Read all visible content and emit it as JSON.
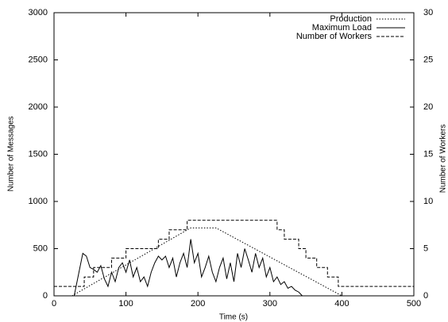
{
  "chart_data": {
    "type": "line",
    "xlabel": "Time (s)",
    "ylabel": "Number of Messages",
    "y2label": "Number of Workers",
    "xlim": [
      0,
      500
    ],
    "xticks": [
      0,
      100,
      200,
      300,
      400,
      500
    ],
    "ylim": [
      0,
      3000
    ],
    "yticks": [
      0,
      500,
      1000,
      1500,
      2000,
      2500,
      3000
    ],
    "y2lim": [
      0,
      30
    ],
    "y2ticks": [
      0,
      5,
      10,
      15,
      20,
      25,
      30
    ],
    "legend": "top-right",
    "series": [
      {
        "name": "Production",
        "color": "#000000",
        "dash": "dotted",
        "x": [
          25,
          190,
          225,
          400
        ],
        "values": [
          0,
          720,
          720,
          0
        ]
      },
      {
        "name": "Maximum Load",
        "color": "#000000",
        "dash": "solid",
        "x": [
          28,
          40,
          45,
          50,
          55,
          60,
          65,
          70,
          75,
          80,
          85,
          90,
          95,
          100,
          105,
          110,
          115,
          120,
          125,
          130,
          135,
          140,
          145,
          150,
          155,
          160,
          165,
          170,
          175,
          180,
          185,
          190,
          195,
          200,
          205,
          210,
          215,
          220,
          225,
          230,
          235,
          240,
          245,
          250,
          255,
          260,
          265,
          270,
          275,
          280,
          285,
          290,
          295,
          300,
          305,
          310,
          315,
          320,
          325,
          330,
          335,
          340,
          345
        ],
        "values": [
          0,
          450,
          420,
          300,
          280,
          250,
          320,
          180,
          100,
          250,
          150,
          300,
          350,
          250,
          380,
          200,
          300,
          150,
          200,
          100,
          250,
          350,
          420,
          380,
          420,
          300,
          400,
          200,
          350,
          450,
          300,
          600,
          350,
          450,
          200,
          300,
          420,
          250,
          150,
          300,
          400,
          180,
          350,
          150,
          450,
          300,
          500,
          380,
          250,
          450,
          300,
          400,
          200,
          300,
          150,
          200,
          120,
          150,
          80,
          100,
          60,
          40,
          0
        ]
      },
      {
        "name": "Number of Workers",
        "color": "#000000",
        "dash": "dashed",
        "axis": "y2",
        "x": [
          0,
          42,
          42,
          55,
          55,
          80,
          80,
          100,
          100,
          145,
          145,
          160,
          160,
          185,
          185,
          310,
          310,
          320,
          320,
          340,
          340,
          350,
          350,
          365,
          365,
          380,
          380,
          395,
          395,
          500
        ],
        "values": [
          1,
          1,
          2,
          2,
          3,
          3,
          4,
          4,
          5,
          5,
          6,
          6,
          7,
          7,
          8,
          8,
          7,
          7,
          6,
          6,
          5,
          5,
          4,
          4,
          3,
          3,
          2,
          2,
          1,
          1
        ]
      }
    ]
  }
}
